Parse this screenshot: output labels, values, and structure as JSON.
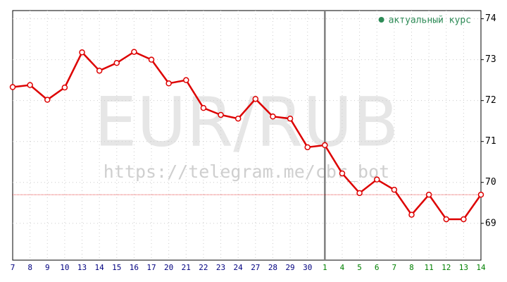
{
  "chart_data": {
    "type": "line",
    "watermark": "EUR/RUB",
    "watermark_url": "https://telegram.me/cbr_bot",
    "legend_label": "актуальный курс",
    "legend_color": "#2e8b57",
    "legend_position": "top-right",
    "categories": [
      "7",
      "8",
      "9",
      "10",
      "13",
      "14",
      "15",
      "16",
      "17",
      "20",
      "21",
      "22",
      "23",
      "24",
      "27",
      "28",
      "29",
      "30",
      "1",
      "4",
      "5",
      "6",
      "7",
      "8",
      "11",
      "12",
      "13",
      "14"
    ],
    "category_colors": [
      "#000080",
      "#008000"
    ],
    "divider_index": 18,
    "series": [
      {
        "name": "EUR/RUB",
        "color": "#dd0000",
        "values": [
          72.33,
          72.38,
          72.02,
          72.32,
          73.18,
          72.73,
          72.92,
          73.19,
          73.0,
          72.42,
          72.5,
          71.82,
          71.65,
          71.56,
          72.04,
          71.61,
          71.56,
          70.86,
          70.91,
          70.22,
          69.74,
          70.07,
          69.82,
          69.21,
          69.7,
          69.1,
          69.1,
          69.7
        ]
      }
    ],
    "ylim": [
      68.1,
      74.2
    ],
    "yticks": [
      69,
      70,
      71,
      72,
      73,
      74
    ],
    "grid": true
  }
}
